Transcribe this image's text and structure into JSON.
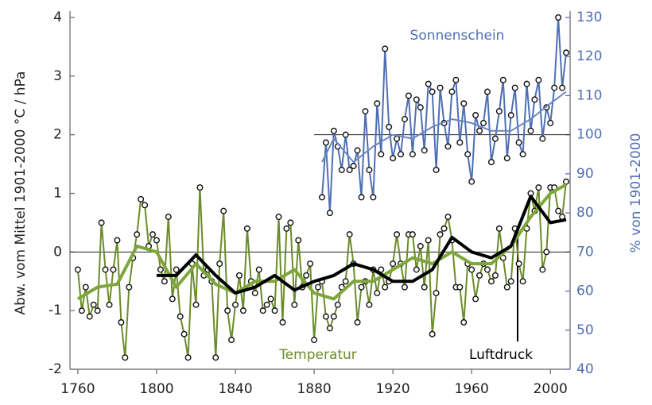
{
  "chart_data": {
    "type": "line",
    "y_label": "Abw. vom Mittel 1901-2000 °C / hPa",
    "y2_label": "% von 1901-2000",
    "annotations": [
      "Sonnenschein",
      "Temperatur",
      "Luftdruck"
    ],
    "xlim": [
      1756,
      2010
    ],
    "xticks": [
      1760,
      1800,
      1840,
      1880,
      1920,
      1960,
      2000
    ],
    "ylim": [
      -2,
      4
    ],
    "yticks": [
      -2,
      -1,
      0,
      1,
      2,
      3,
      4
    ],
    "y2lim": [
      40,
      130
    ],
    "y2ticks": [
      40,
      50,
      60,
      70,
      80,
      90,
      100,
      110,
      120,
      130
    ],
    "reference_lines": [
      {
        "axis": "y",
        "value": 0,
        "from": 1756
      },
      {
        "axis": "y2",
        "value": 100,
        "from": 1880
      }
    ],
    "series": [
      {
        "color": "#6a8c2a",
        "markers": true,
        "width": 2,
        "x": [
          1760,
          1762,
          1764,
          1766,
          1768,
          1770,
          1772,
          1774,
          1776,
          1778,
          1780,
          1782,
          1784,
          1786,
          1788,
          1790,
          1792,
          1794,
          1796,
          1798,
          1800,
          1802,
          1804,
          1806,
          1808,
          1810,
          1812,
          1814,
          1816,
          1818,
          1820,
          1822,
          1824,
          1826,
          1828,
          1830,
          1832,
          1834,
          1836,
          1838,
          1840,
          1842,
          1844,
          1846,
          1848,
          1850,
          1852,
          1854,
          1856,
          1858,
          1860,
          1862,
          1864,
          1866,
          1868,
          1870,
          1872,
          1874,
          1876,
          1878,
          1880,
          1882,
          1884,
          1886,
          1888,
          1890,
          1892,
          1894,
          1896,
          1898,
          1900,
          1902,
          1904,
          1906,
          1908,
          1910,
          1912,
          1914,
          1916,
          1918,
          1920,
          1922,
          1924,
          1926,
          1928,
          1930,
          1932,
          1934,
          1936,
          1938,
          1940,
          1942,
          1944,
          1946,
          1948,
          1950,
          1952,
          1954,
          1956,
          1958,
          1960,
          1962,
          1964,
          1966,
          1968,
          1970,
          1972,
          1974,
          1976,
          1978,
          1980,
          1982,
          1984,
          1986,
          1988,
          1990,
          1992,
          1994,
          1996,
          1998,
          2000,
          2002,
          2004,
          2006,
          2008
        ],
        "values": [
          -0.3,
          -1.0,
          -0.6,
          -1.1,
          -0.9,
          -1.0,
          0.5,
          -0.3,
          -0.9,
          -0.3,
          0.2,
          -1.2,
          -1.8,
          -0.6,
          -0.1,
          0.3,
          0.9,
          0.8,
          0.1,
          0.3,
          0.2,
          -0.3,
          -0.5,
          0.6,
          -0.8,
          -0.3,
          -1.1,
          -1.4,
          -1.8,
          -0.2,
          -0.9,
          1.1,
          -0.4,
          -0.3,
          -0.5,
          -1.8,
          -0.2,
          0.7,
          -1.0,
          -1.5,
          -0.9,
          -0.4,
          -1.0,
          0.4,
          -0.5,
          -0.7,
          -0.3,
          -1.0,
          -0.9,
          -0.8,
          -1.0,
          0.6,
          -1.2,
          0.4,
          0.5,
          -0.9,
          0.2,
          -0.6,
          -0.4,
          -0.2,
          -1.5,
          -0.6,
          -0.5,
          -1.1,
          -1.3,
          -1.1,
          -0.9,
          -0.6,
          -0.5,
          0.3,
          -0.2,
          -1.2,
          -0.6,
          -0.5,
          -0.9,
          -0.3,
          -0.7,
          -0.3,
          -0.6,
          -0.5,
          -0.2,
          0.3,
          -0.2,
          -0.6,
          0.3,
          0.3,
          -0.3,
          0.1,
          -0.6,
          0.2,
          -1.4,
          -0.7,
          0.3,
          0.4,
          0.6,
          0.2,
          -0.6,
          -0.6,
          -1.2,
          -0.2,
          -0.3,
          -0.8,
          -0.4,
          -0.2,
          -0.3,
          -0.5,
          -0.4,
          0.4,
          -0.1,
          -0.6,
          -0.5,
          0.4,
          -0.2,
          -0.5,
          0.4,
          1.0,
          0.7,
          1.1,
          -0.3,
          0.0,
          1.1,
          1.1,
          0.7,
          0.6,
          1.2
        ]
      },
      {
        "color": "#7ea63a",
        "markers": false,
        "width": 4,
        "x": [
          1760,
          1770,
          1780,
          1790,
          1800,
          1810,
          1820,
          1830,
          1840,
          1850,
          1860,
          1870,
          1880,
          1890,
          1900,
          1910,
          1920,
          1930,
          1940,
          1950,
          1960,
          1970,
          1980,
          1990,
          2000,
          2008
        ],
        "values": [
          -0.8,
          -0.6,
          -0.55,
          0.1,
          0.0,
          -0.6,
          -0.2,
          -0.55,
          -0.7,
          -0.5,
          -0.5,
          -0.3,
          -0.7,
          -0.8,
          -0.5,
          -0.5,
          -0.3,
          -0.1,
          -0.2,
          0.0,
          -0.2,
          -0.2,
          0.1,
          0.6,
          1.0,
          1.15
        ]
      },
      {
        "color": "#000000",
        "markers": false,
        "width": 4,
        "x": [
          1800,
          1810,
          1820,
          1830,
          1840,
          1850,
          1860,
          1870,
          1880,
          1890,
          1900,
          1910,
          1920,
          1930,
          1940,
          1950,
          1960,
          1970,
          1980,
          1990,
          2000,
          2008
        ],
        "values": [
          -0.4,
          -0.4,
          -0.05,
          -0.4,
          -0.7,
          -0.6,
          -0.4,
          -0.65,
          -0.5,
          -0.4,
          -0.2,
          -0.3,
          -0.5,
          -0.5,
          -0.3,
          0.25,
          0.0,
          -0.1,
          0.1,
          0.95,
          0.5,
          0.55
        ]
      },
      {
        "color": "#4f6fb3",
        "markers": true,
        "width": 2,
        "axis": "y2",
        "x": [
          1884,
          1886,
          1888,
          1890,
          1892,
          1894,
          1896,
          1898,
          1900,
          1902,
          1904,
          1906,
          1908,
          1910,
          1912,
          1914,
          1916,
          1918,
          1920,
          1922,
          1924,
          1926,
          1928,
          1930,
          1932,
          1934,
          1936,
          1938,
          1940,
          1942,
          1944,
          1946,
          1948,
          1950,
          1952,
          1954,
          1956,
          1958,
          1960,
          1962,
          1964,
          1966,
          1968,
          1970,
          1972,
          1974,
          1976,
          1978,
          1980,
          1982,
          1984,
          1986,
          1988,
          1990,
          1992,
          1994,
          1996,
          1998,
          2000,
          2002,
          2004,
          2006,
          2008
        ],
        "values": [
          84,
          98,
          80,
          101,
          97,
          91,
          100,
          91,
          92,
          96,
          84,
          106,
          91,
          84,
          108,
          95,
          122,
          102,
          94,
          99,
          95,
          104,
          110,
          95,
          109,
          107,
          96,
          113,
          111,
          91,
          112,
          103,
          97,
          111,
          114,
          98,
          108,
          95,
          88,
          105,
          101,
          103,
          111,
          93,
          99,
          106,
          114,
          94,
          105,
          112,
          98,
          95,
          113,
          101,
          109,
          114,
          99,
          107,
          103,
          112,
          130,
          112,
          121
        ]
      },
      {
        "color": "#6a86c4",
        "markers": false,
        "width": 2,
        "axis": "y2",
        "x": [
          1884,
          1890,
          1900,
          1910,
          1920,
          1930,
          1940,
          1950,
          1960,
          1970,
          1980,
          1990,
          2000,
          2008
        ],
        "values": [
          93,
          99,
          93,
          97,
          100,
          99,
          102,
          104,
          103,
          101,
          101,
          104,
          108,
          111
        ]
      }
    ]
  }
}
